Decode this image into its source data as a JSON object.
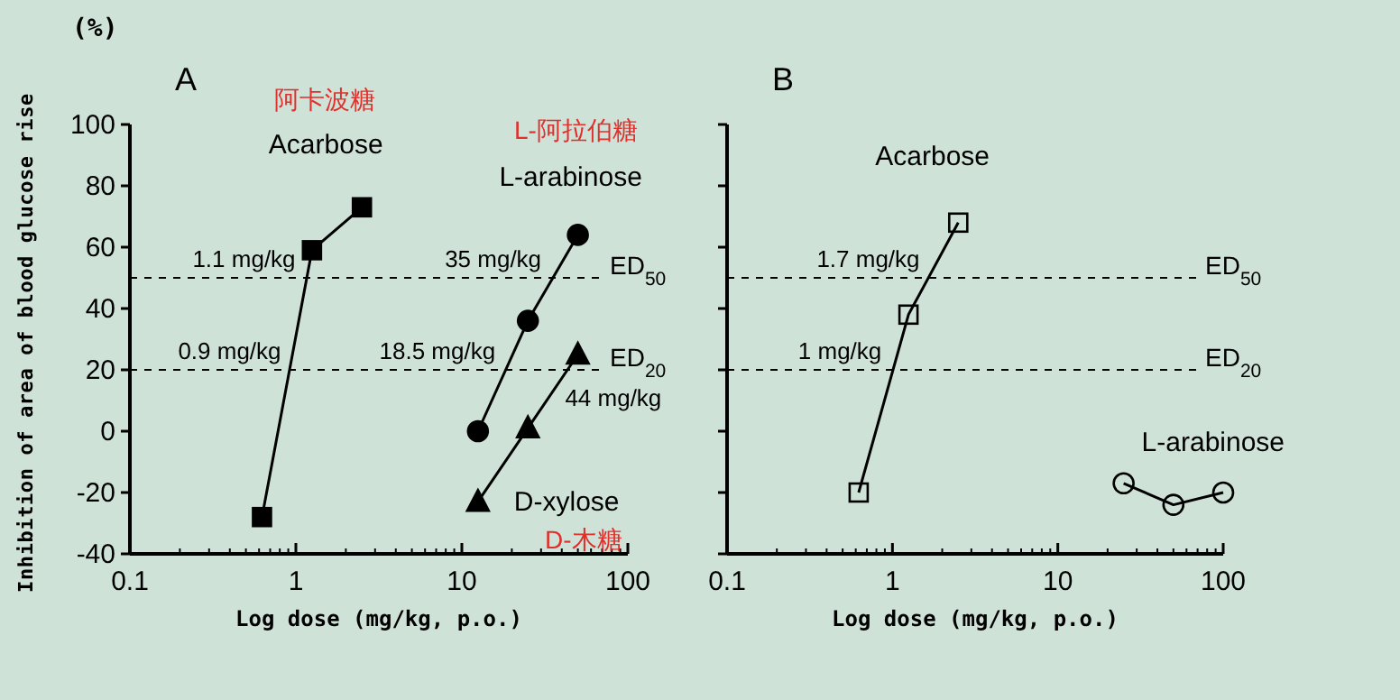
{
  "chart_data": [
    {
      "type": "line",
      "title": "A",
      "ylabel": "Inhibition of area of blood glucose rise",
      "xlabel": "Log dose (mg/kg, p.o.)",
      "log": "x",
      "xlim": [
        0.1,
        100
      ],
      "xticks": [
        0.1,
        1,
        10,
        100
      ],
      "ylim": [
        -40,
        100
      ],
      "yticks": [
        -40,
        -20,
        0,
        20,
        40,
        60,
        80,
        100
      ],
      "line_style": "solid",
      "series": [
        {
          "name": "Acarbose",
          "color": "#000000",
          "marker": "square",
          "x": [
            0.625,
            1.25,
            2.5
          ],
          "values": [
            -28,
            59,
            73
          ]
        },
        {
          "name": "L-arabinose",
          "color": "#000000",
          "marker": "circle",
          "x": [
            12.5,
            25,
            50
          ],
          "values": [
            0,
            36,
            64
          ]
        },
        {
          "name": "D-xylose",
          "color": "#000000",
          "marker": "triangle",
          "x": [
            12.5,
            25,
            50
          ],
          "values": [
            -23,
            1,
            25
          ]
        }
      ],
      "ref_lines": [
        {
          "axis": "y",
          "value": 50,
          "label": "ED$_{50}$",
          "line_style": "dashed"
        },
        {
          "axis": "y",
          "value": 20,
          "label": "ED$_{20}$",
          "line_style": "dashed"
        }
      ],
      "annotations": [
        "(%)",
        "阿卡波糖",
        "L-阿拉伯糖",
        "D-木糖",
        {
          "text": "1.1 mg/kg",
          "x": 1.1,
          "y": 50
        },
        {
          "text": "0.9 mg/kg",
          "x": 0.9,
          "y": 20
        },
        {
          "text": "35 mg/kg",
          "x": 35,
          "y": 50
        },
        {
          "text": "18.5 mg/kg",
          "x": 18.5,
          "y": 20
        },
        {
          "text": "44 mg/kg",
          "x": 44,
          "y": 20
        }
      ]
    },
    {
      "type": "line",
      "title": "B",
      "xlabel": "Log dose (mg/kg, p.o.)",
      "log": "x",
      "xlim": [
        0.1,
        100
      ],
      "xticks": [
        0.1,
        1,
        10,
        100
      ],
      "ylim": [
        -40,
        100
      ],
      "yticks": [
        {
          "value": -40,
          "label": null
        },
        {
          "value": -20,
          "label": null
        },
        {
          "value": 0,
          "label": null
        },
        {
          "value": 20,
          "label": null
        },
        {
          "value": 40,
          "label": null
        },
        {
          "value": 60,
          "label": null
        },
        {
          "value": 80,
          "label": null
        },
        {
          "value": 100,
          "label": null
        }
      ],
      "tick_labels": "x",
      "line_style": "solid",
      "series": [
        {
          "name": "Acarbose",
          "color": "#000000",
          "marker": "square",
          "x": [
            0.625,
            1.25,
            2.5
          ],
          "values": [
            -20,
            38,
            68
          ]
        },
        {
          "name": "L-arabinose",
          "color": "#000000",
          "marker": "circle",
          "x": [
            25,
            50,
            100
          ],
          "values": [
            -17,
            -24,
            -20
          ]
        }
      ],
      "ref_lines": [
        {
          "axis": "y",
          "value": 50,
          "label": "ED$_{50}$",
          "line_style": "dashed"
        },
        {
          "axis": "y",
          "value": 20,
          "label": "ED$_{20}$",
          "line_style": "dashed"
        }
      ],
      "annotations": [
        {
          "text": "1.7 mg/kg",
          "x": 1.7,
          "y": 50
        },
        {
          "text": "1 mg/kg",
          "x": 1,
          "y": 20
        }
      ]
    }
  ]
}
